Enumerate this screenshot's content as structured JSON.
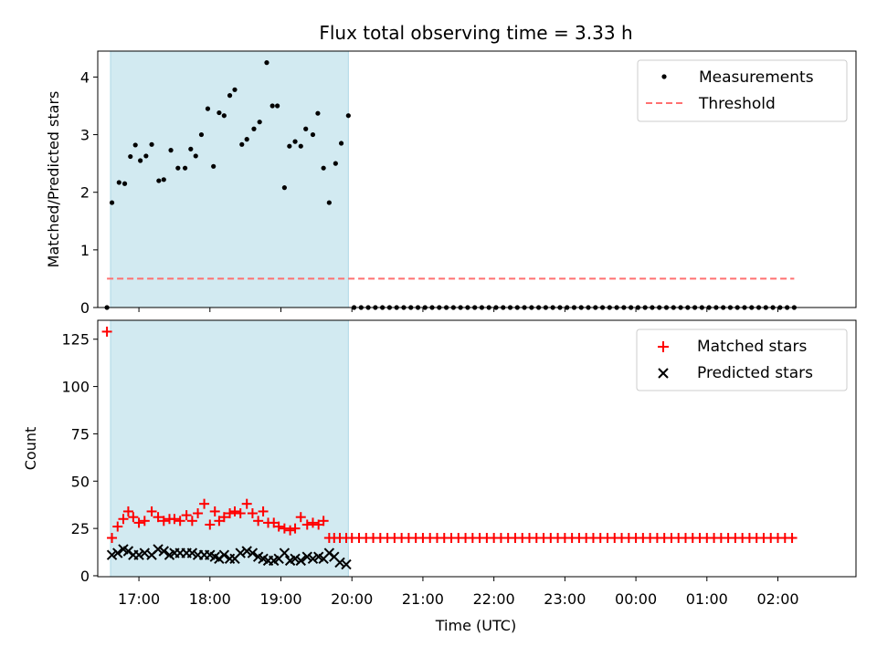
{
  "chart_data": {
    "type": "scatter",
    "title": "Flux total observing time = 3.33 h",
    "xlabel": "Time (UTC)",
    "x_unit": "hours since 16:00 UTC",
    "xlim": [
      0.42,
      11.1
    ],
    "x_ticks": [
      {
        "value": 1,
        "label": "17:00"
      },
      {
        "value": 2,
        "label": "18:00"
      },
      {
        "value": 3,
        "label": "19:00"
      },
      {
        "value": 4,
        "label": "20:00"
      },
      {
        "value": 5,
        "label": "21:00"
      },
      {
        "value": 6,
        "label": "22:00"
      },
      {
        "value": 7,
        "label": "23:00"
      },
      {
        "value": 8,
        "label": "00:00"
      },
      {
        "value": 9,
        "label": "01:00"
      },
      {
        "value": 10,
        "label": "02:00"
      }
    ],
    "observing_span": [
      0.6,
      3.95
    ],
    "colors": {
      "span": "#add8e6",
      "measurements": "#000000",
      "threshold": "#ff7070",
      "matched": "#ff0000",
      "predicted": "#000000"
    },
    "top": {
      "ylabel": "Matched/Predicted stars",
      "ylim": [
        0,
        4.45
      ],
      "y_ticks": [
        0,
        1,
        2,
        3,
        4
      ],
      "legend": {
        "position": "upper right",
        "entries": [
          "Measurements",
          "Threshold"
        ]
      },
      "threshold": 0.5,
      "measurements": {
        "x": [
          0.55,
          0.62,
          0.72,
          0.8,
          0.88,
          0.95,
          1.02,
          1.1,
          1.18,
          1.28,
          1.35,
          1.45,
          1.55,
          1.65,
          1.73,
          1.8,
          1.88,
          1.97,
          2.05,
          2.13,
          2.2,
          2.28,
          2.35,
          2.45,
          2.52,
          2.62,
          2.7,
          2.8,
          2.88,
          2.95,
          3.05,
          3.12,
          3.2,
          3.28,
          3.35,
          3.45,
          3.52,
          3.6,
          3.68,
          3.77,
          3.85,
          3.95,
          4.03,
          4.13,
          4.23,
          4.33,
          4.43,
          4.53,
          4.63,
          4.73,
          4.83,
          4.93,
          5.03,
          5.13,
          5.23,
          5.33,
          5.43,
          5.53,
          5.63,
          5.73,
          5.83,
          5.93,
          6.03,
          6.13,
          6.23,
          6.33,
          6.43,
          6.53,
          6.63,
          6.73,
          6.83,
          6.93,
          7.03,
          7.13,
          7.23,
          7.33,
          7.43,
          7.53,
          7.63,
          7.73,
          7.83,
          7.93,
          8.03,
          8.13,
          8.23,
          8.33,
          8.43,
          8.53,
          8.63,
          8.73,
          8.83,
          8.93,
          9.03,
          9.13,
          9.23,
          9.33,
          9.43,
          9.53,
          9.63,
          9.73,
          9.83,
          9.93,
          10.03,
          10.13,
          10.23
        ],
        "y": [
          0,
          1.82,
          2.17,
          2.15,
          2.62,
          2.82,
          2.55,
          2.63,
          2.83,
          2.2,
          2.22,
          2.73,
          2.42,
          2.42,
          2.75,
          2.63,
          3.0,
          3.45,
          2.45,
          3.38,
          3.33,
          3.68,
          3.78,
          2.83,
          2.92,
          3.1,
          3.22,
          4.25,
          3.5,
          3.5,
          2.08,
          2.8,
          2.88,
          2.8,
          3.1,
          3.0,
          3.37,
          2.42,
          1.82,
          2.5,
          2.85,
          3.33,
          0,
          0,
          0,
          0,
          0,
          0,
          0,
          0,
          0,
          0,
          0,
          0,
          0,
          0,
          0,
          0,
          0,
          0,
          0,
          0,
          0,
          0,
          0,
          0,
          0,
          0,
          0,
          0,
          0,
          0,
          0,
          0,
          0,
          0,
          0,
          0,
          0,
          0,
          0,
          0,
          0,
          0,
          0,
          0,
          0,
          0,
          0,
          0,
          0,
          0,
          0,
          0,
          0,
          0,
          0,
          0,
          0,
          0,
          0,
          0,
          0,
          0,
          0
        ]
      }
    },
    "bottom": {
      "ylabel": "Count",
      "ylim": [
        -0.5,
        135
      ],
      "y_ticks": [
        0,
        25,
        50,
        75,
        100,
        125
      ],
      "legend": {
        "position": "upper right",
        "entries": [
          "Matched stars",
          "Predicted stars"
        ]
      },
      "matched": {
        "x": [
          0.55,
          0.62,
          0.7,
          0.78,
          0.85,
          0.92,
          1.0,
          1.08,
          1.18,
          1.27,
          1.35,
          1.43,
          1.5,
          1.58,
          1.67,
          1.75,
          1.83,
          1.92,
          2.0,
          2.07,
          2.13,
          2.2,
          2.28,
          2.35,
          2.43,
          2.52,
          2.6,
          2.68,
          2.75,
          2.82,
          2.9,
          2.97,
          3.05,
          3.13,
          3.2,
          3.28,
          3.37,
          3.45,
          3.53,
          3.6,
          3.68,
          3.75,
          3.83,
          3.92,
          4.0,
          4.1,
          4.2,
          4.3,
          4.4,
          4.5,
          4.6,
          4.7,
          4.8,
          4.9,
          5.0,
          5.1,
          5.2,
          5.3,
          5.4,
          5.5,
          5.6,
          5.7,
          5.8,
          5.9,
          6.0,
          6.1,
          6.2,
          6.3,
          6.4,
          6.5,
          6.6,
          6.7,
          6.8,
          6.9,
          7.0,
          7.1,
          7.2,
          7.3,
          7.4,
          7.5,
          7.6,
          7.7,
          7.8,
          7.9,
          8.0,
          8.1,
          8.2,
          8.3,
          8.4,
          8.5,
          8.6,
          8.7,
          8.8,
          8.9,
          9.0,
          9.1,
          9.2,
          9.3,
          9.4,
          9.5,
          9.6,
          9.7,
          9.8,
          9.9,
          10.0,
          10.1,
          10.2
        ],
        "y": [
          129,
          20,
          26,
          30,
          34,
          31,
          28,
          29,
          34,
          31,
          29,
          30,
          30,
          29,
          32,
          29,
          33,
          38,
          27,
          34,
          29,
          31,
          33,
          34,
          33,
          38,
          33,
          29,
          34,
          28,
          28,
          26,
          25,
          24,
          25,
          31,
          27,
          28,
          27,
          29,
          20,
          20,
          20,
          20,
          20,
          20,
          20,
          20,
          20,
          20,
          20,
          20,
          20,
          20,
          20,
          20,
          20,
          20,
          20,
          20,
          20,
          20,
          20,
          20,
          20,
          20,
          20,
          20,
          20,
          20,
          20,
          20,
          20,
          20,
          20,
          20,
          20,
          20,
          20,
          20,
          20,
          20,
          20,
          20,
          20,
          20,
          20,
          20,
          20,
          20,
          20,
          20,
          20,
          20,
          20,
          20,
          20,
          20,
          20,
          20,
          20,
          20,
          20,
          20,
          20,
          20,
          20
        ]
      },
      "predicted": {
        "x": [
          0.62,
          0.7,
          0.78,
          0.85,
          0.92,
          1.0,
          1.08,
          1.18,
          1.27,
          1.35,
          1.43,
          1.5,
          1.58,
          1.67,
          1.75,
          1.83,
          1.92,
          2.0,
          2.07,
          2.13,
          2.2,
          2.28,
          2.35,
          2.43,
          2.52,
          2.6,
          2.68,
          2.75,
          2.82,
          2.9,
          2.97,
          3.05,
          3.13,
          3.2,
          3.28,
          3.37,
          3.45,
          3.53,
          3.6,
          3.68,
          3.75,
          3.83,
          3.92
        ],
        "y": [
          11,
          12,
          14,
          13,
          11,
          11,
          12,
          11,
          14,
          13,
          11,
          12,
          12,
          12,
          12,
          11,
          11,
          11,
          10,
          9,
          11,
          9,
          9,
          12,
          13,
          12,
          10,
          9,
          8,
          8,
          9,
          12,
          8,
          9,
          8,
          10,
          9,
          10,
          9,
          12,
          10,
          7,
          6
        ]
      }
    }
  }
}
